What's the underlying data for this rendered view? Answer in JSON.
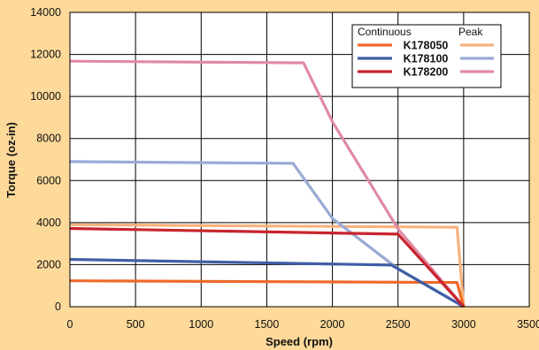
{
  "chart_data": {
    "type": "line",
    "xlabel": "Speed (rpm)",
    "ylabel": "Torque (oz-in)",
    "xlim": [
      0,
      3500
    ],
    "ylim": [
      0,
      14000
    ],
    "x_ticks": [
      0,
      500,
      1000,
      1500,
      2000,
      2500,
      3000,
      3500
    ],
    "y_ticks": [
      0,
      2000,
      4000,
      6000,
      8000,
      10000,
      12000,
      14000
    ],
    "grid": true,
    "legend": {
      "placement": "top-right",
      "continuous_header": "Continuous",
      "peak_header": "Peak"
    },
    "series": [
      {
        "name": "K178050",
        "continuous": {
          "color": "#ee6a2a",
          "points": [
            [
              0,
              1230
            ],
            [
              2950,
              1150
            ],
            [
              3000,
              0
            ]
          ]
        },
        "peak": {
          "color": "#f7b27e",
          "points": [
            [
              0,
              3900
            ],
            [
              2950,
              3780
            ],
            [
              3000,
              0
            ]
          ]
        }
      },
      {
        "name": "K178100",
        "continuous": {
          "color": "#3f5fa6",
          "points": [
            [
              0,
              2250
            ],
            [
              2450,
              1980
            ],
            [
              3000,
              0
            ]
          ]
        },
        "peak": {
          "color": "#9aaad6",
          "points": [
            [
              0,
              6900
            ],
            [
              1700,
              6820
            ],
            [
              2000,
              4200
            ],
            [
              2500,
              1800
            ],
            [
              3000,
              0
            ]
          ]
        }
      },
      {
        "name": "K178200",
        "continuous": {
          "color": "#c8242e",
          "points": [
            [
              0,
              3720
            ],
            [
              2500,
              3450
            ],
            [
              3000,
              0
            ]
          ]
        },
        "peak": {
          "color": "#e08aa4",
          "points": [
            [
              0,
              11680
            ],
            [
              1780,
              11600
            ],
            [
              2000,
              8800
            ],
            [
              2500,
              3700
            ],
            [
              3000,
              0
            ]
          ]
        }
      }
    ]
  }
}
